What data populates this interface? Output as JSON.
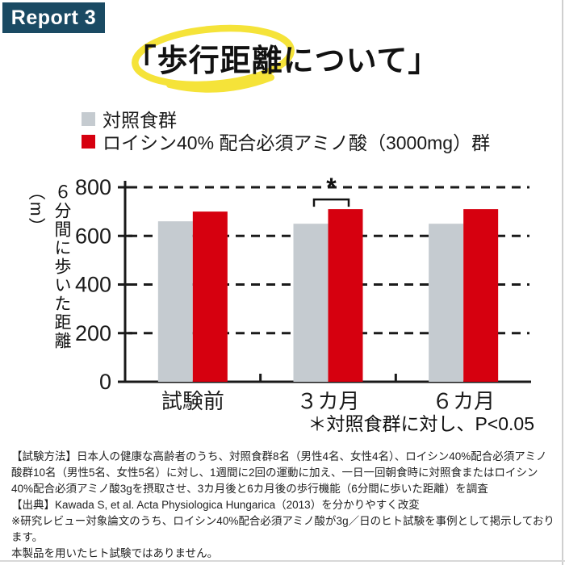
{
  "badge": {
    "label": "Report 3",
    "bg": "#1a4a63",
    "color": "#ffffff"
  },
  "title": {
    "text": "「歩行距離について」",
    "highlight_color": "#f5e339"
  },
  "legend": {
    "items": [
      {
        "label": "対照食群",
        "color": "#c5cbd0"
      },
      {
        "label": "ロイシン40% 配合必須アミノ酸（3000mg）群",
        "color": "#d6000f"
      }
    ]
  },
  "chart_data": {
    "type": "bar",
    "title": "",
    "categories": [
      "試験前",
      "３カ月",
      "６カ月"
    ],
    "series": [
      {
        "name": "対照食群",
        "color": "#c5cbd0",
        "values": [
          660,
          650,
          650
        ]
      },
      {
        "name": "ロイシン40% 配合必須アミノ酸（3000mg）群",
        "color": "#d6000f",
        "values": [
          700,
          710,
          710
        ]
      }
    ],
    "xlabel": "",
    "ylabel": "６分間に歩いた距離（m）",
    "ylim": [
      0,
      800
    ],
    "yticks": [
      0,
      200,
      400,
      600,
      800
    ],
    "grid": "dashed horizontal gridlines",
    "legend_position": "top",
    "significance": {
      "category_index": 1,
      "marker": "*"
    },
    "note": "＊対照食群に対し、P<0.05"
  },
  "footnotes": {
    "method": "【試験方法】日本人の健康な高齢者のうち、対照食群8名（男性4名、女性4名）、ロイシン40%配合必須アミノ酸群10名（男性5名、女性5名）に対し、1週間に2回の運動に加え、一日一回朝食時に対照食またはロイシン40%配合必須アミノ酸3gを摂取させ、3カ月後と6カ月後の歩行機能（6分間に歩いた距離）を調査",
    "source": "【出典】Kawada S, et al. Acta Physiologica Hungarica（2013）を分かりやすく改変",
    "note1": "※研究レビュー対象論文のうち、ロイシン40%配合必須アミノ酸が3g／日のヒト試験を事例として掲示しております。",
    "note2": "本製品を用いたヒト試験ではありません。"
  }
}
